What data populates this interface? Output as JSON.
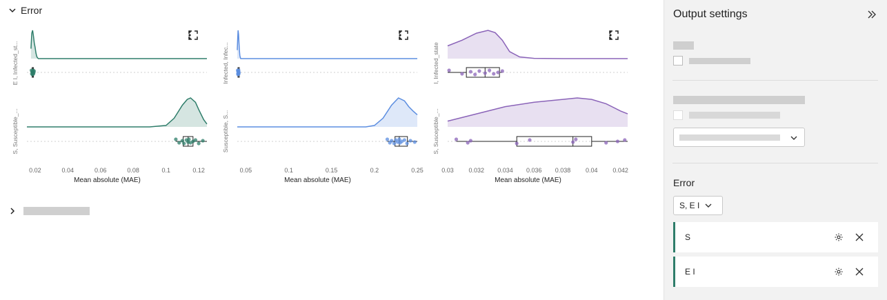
{
  "section": {
    "title": "Error"
  },
  "panel": {
    "title": "Output settings",
    "error_label": "Error",
    "error_select_value": "S, E I",
    "items": [
      {
        "label": "S"
      },
      {
        "label": "E I"
      }
    ]
  },
  "chart_data": [
    {
      "type": "raincloud",
      "xlabel": "Mean absolute (MAE)",
      "xlim": [
        0.015,
        0.125
      ],
      "xticks": [
        0.02,
        0.04,
        0.06,
        0.08,
        0.1,
        0.12
      ],
      "xtick_labels": [
        "0.02",
        "0.04",
        "0.06",
        "0.08",
        "0.1",
        "0.12"
      ],
      "color": "#2e7d6a",
      "series": [
        {
          "name": "E I, Infected_st...",
          "density": {
            "x": [
              0.0175,
              0.018,
              0.0185,
              0.019,
              0.0195,
              0.02,
              0.0205,
              0.021,
              0.0215,
              0.022,
              0.023,
              0.03,
              0.125
            ],
            "y": [
              0.35,
              0.9,
              1.0,
              0.8,
              0.55,
              0.4,
              0.2,
              0.08,
              0.03,
              0.0,
              0.0,
              0.0,
              0.0
            ]
          },
          "box": {
            "min": 0.0178,
            "q1": 0.0182,
            "median": 0.0185,
            "q3": 0.0189,
            "max": 0.0195
          },
          "points": [
            0.0178,
            0.018,
            0.0182,
            0.0184,
            0.0185,
            0.0186,
            0.0188,
            0.019,
            0.0192,
            0.0194
          ]
        },
        {
          "name": "S, Susceptible_...",
          "density": {
            "x": [
              0.015,
              0.09,
              0.1,
              0.105,
              0.11,
              0.113,
              0.115,
              0.118,
              0.12,
              0.123,
              0.125
            ],
            "y": [
              0.0,
              0.0,
              0.05,
              0.3,
              0.75,
              0.95,
              1.0,
              0.85,
              0.6,
              0.25,
              0.1
            ]
          },
          "box": {
            "min": 0.106,
            "q1": 0.1105,
            "median": 0.1135,
            "q3": 0.1165,
            "max": 0.125
          },
          "points": [
            0.106,
            0.108,
            0.11,
            0.111,
            0.1125,
            0.1135,
            0.114,
            0.115,
            0.1165,
            0.118,
            0.12,
            0.1225
          ]
        }
      ]
    },
    {
      "type": "raincloud",
      "xlabel": "Mean absolute (MAE)",
      "xlim": [
        0.04,
        0.25
      ],
      "xticks": [
        0.05,
        0.1,
        0.15,
        0.2,
        0.25
      ],
      "xtick_labels": [
        "0.05",
        "0.1",
        "0.15",
        "0.2",
        "0.25"
      ],
      "color": "#5b8de0",
      "series": [
        {
          "name": "Infected, Infec...",
          "density": {
            "x": [
              0.04,
              0.0405,
              0.041,
              0.0415,
              0.042,
              0.0425,
              0.043,
              0.0435,
              0.044,
              0.046,
              0.25
            ],
            "y": [
              0.3,
              0.7,
              1.0,
              0.85,
              0.55,
              0.3,
              0.12,
              0.05,
              0.0,
              0.0,
              0.0
            ]
          },
          "box": {
            "min": 0.0405,
            "q1": 0.0408,
            "median": 0.0412,
            "q3": 0.0416,
            "max": 0.0422
          },
          "points": [
            0.0405,
            0.0407,
            0.0409,
            0.041,
            0.0412,
            0.0414,
            0.0416,
            0.0418,
            0.042
          ]
        },
        {
          "name": "Susceptible, S...",
          "density": {
            "x": [
              0.04,
              0.19,
              0.2,
              0.21,
              0.22,
              0.228,
              0.235,
              0.24,
              0.245,
              0.25
            ],
            "y": [
              0.0,
              0.0,
              0.05,
              0.3,
              0.75,
              1.0,
              0.9,
              0.7,
              0.55,
              0.42
            ]
          },
          "box": {
            "min": 0.215,
            "q1": 0.224,
            "median": 0.229,
            "q3": 0.2385,
            "max": 0.25
          },
          "points": [
            0.215,
            0.218,
            0.22,
            0.223,
            0.225,
            0.227,
            0.229,
            0.23,
            0.232,
            0.235,
            0.238,
            0.242,
            0.247
          ]
        }
      ]
    },
    {
      "type": "raincloud",
      "xlabel": "Mean absolute (MAE)",
      "xlim": [
        0.03,
        0.0425
      ],
      "xticks": [
        0.03,
        0.032,
        0.034,
        0.036,
        0.038,
        0.04,
        0.042
      ],
      "xtick_labels": [
        "0.03",
        "0.032",
        "0.034",
        "0.036",
        "0.038",
        "0.04",
        "0.042"
      ],
      "color": "#8a63b8",
      "series": [
        {
          "name": "I, Infected_state",
          "density": {
            "x": [
              0.03,
              0.031,
              0.032,
              0.0328,
              0.0333,
              0.0338,
              0.0343,
              0.035,
              0.036,
              0.038,
              0.0425
            ],
            "y": [
              0.45,
              0.65,
              0.9,
              1.0,
              0.92,
              0.65,
              0.25,
              0.06,
              0.01,
              0.0,
              0.0
            ]
          },
          "box": {
            "min": 0.03,
            "q1": 0.0313,
            "median": 0.0326,
            "q3": 0.0336,
            "max": 0.0338
          },
          "points": [
            0.0301,
            0.031,
            0.0316,
            0.0319,
            0.0322,
            0.0326,
            0.0329,
            0.0332,
            0.0335,
            0.0338
          ]
        },
        {
          "name": "S, Susceptible_...",
          "density": {
            "x": [
              0.03,
              0.032,
              0.034,
              0.036,
              0.038,
              0.039,
              0.04,
              0.041,
              0.042,
              0.0425
            ],
            "y": [
              0.2,
              0.45,
              0.7,
              0.85,
              0.95,
              1.0,
              0.95,
              0.8,
              0.55,
              0.45
            ]
          },
          "box": {
            "min": 0.0306,
            "q1": 0.0348,
            "median": 0.0387,
            "q3": 0.04,
            "max": 0.0425
          },
          "points": [
            0.0306,
            0.0314,
            0.0316,
            0.0348,
            0.0357,
            0.0387,
            0.0389,
            0.041,
            0.0418,
            0.0423
          ]
        }
      ]
    }
  ]
}
